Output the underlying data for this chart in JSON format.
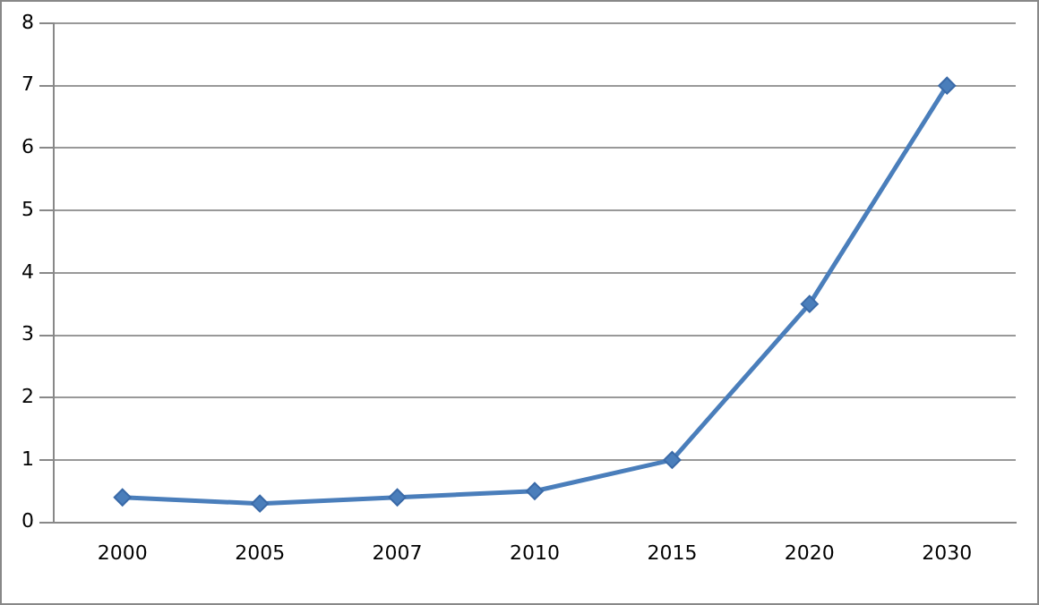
{
  "chart_data": {
    "type": "line",
    "categories": [
      "2000",
      "2005",
      "2007",
      "2010",
      "2015",
      "2020",
      "2030"
    ],
    "series": [
      {
        "color": "#4a7ebb",
        "values": [
          0.4,
          0.3,
          0.4,
          0.5,
          1.0,
          3.5,
          7.0
        ]
      }
    ],
    "ylim": [
      0,
      8
    ],
    "yticks": [
      0,
      1,
      2,
      3,
      4,
      5,
      6,
      7,
      8
    ],
    "grid": "y",
    "legend": false,
    "marker": "diamond",
    "line_style": "solid"
  }
}
